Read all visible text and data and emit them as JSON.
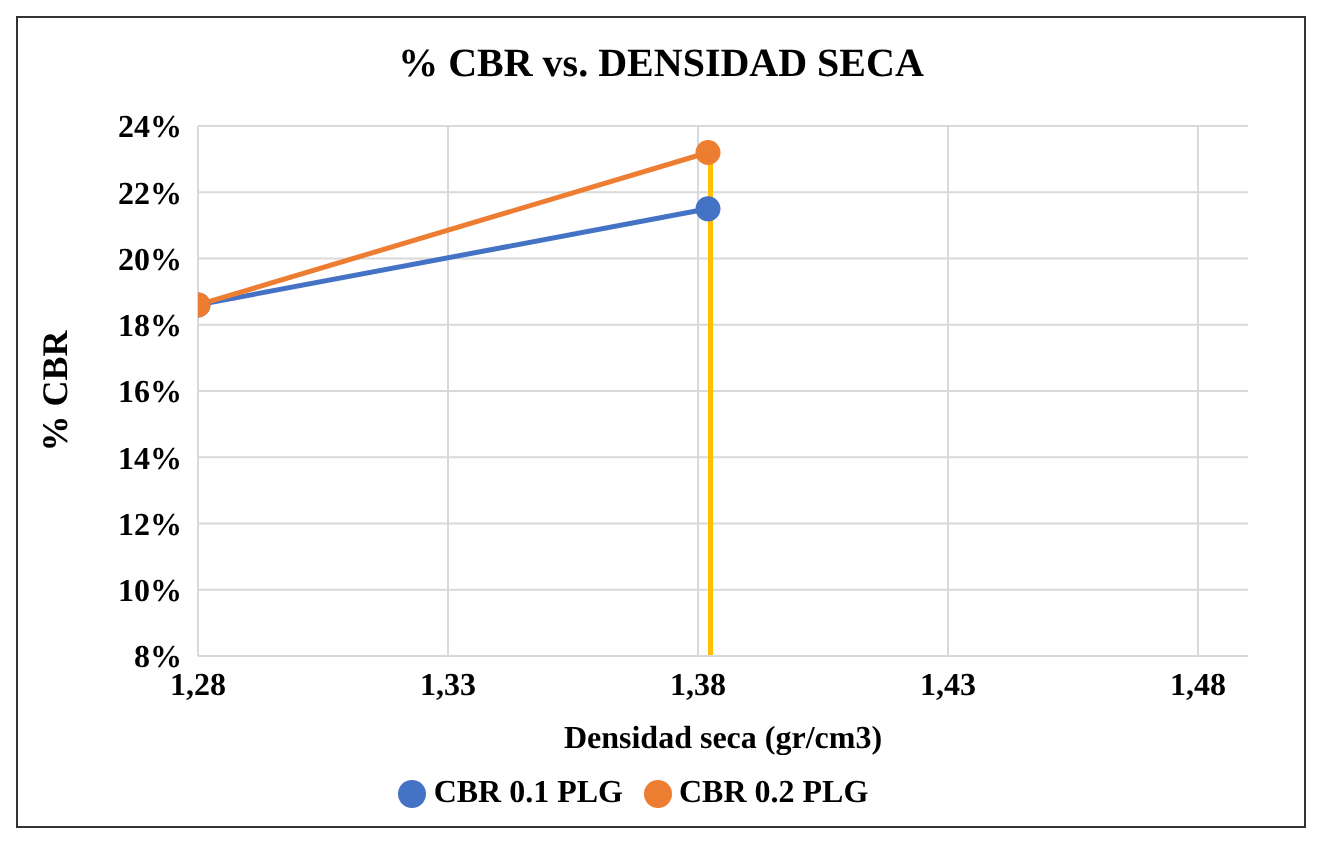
{
  "chart_data": {
    "type": "line",
    "title": "% CBR vs. DENSIDAD SECA",
    "xlabel": "Densidad seca (gr/cm3)",
    "ylabel": "% CBR",
    "x": [
      1.28,
      1.382
    ],
    "series": [
      {
        "name": "CBR 0.1 PLG",
        "color": "#4472c4",
        "values": [
          18.6,
          21.5
        ],
        "marker": "circle"
      },
      {
        "name": "CBR 0.2 PLG",
        "color": "#ed7d31",
        "values": [
          18.6,
          23.2
        ],
        "marker": "circle"
      },
      {
        "color": "#ffc000",
        "x": [
          1.3825,
          1.3825
        ],
        "values": [
          8,
          23.2
        ],
        "marker": "none"
      }
    ],
    "xlim": [
      1.28,
      1.49
    ],
    "xticks": [
      {
        "value": 1.28,
        "label": "1,28"
      },
      {
        "value": 1.33,
        "label": "1,33"
      },
      {
        "value": 1.38,
        "label": "1,38"
      },
      {
        "value": 1.43,
        "label": "1,43"
      },
      {
        "value": 1.48,
        "label": "1,48"
      }
    ],
    "ylim": [
      8,
      24
    ],
    "yticks": [
      {
        "value": 8,
        "label": "8%"
      },
      {
        "value": 10,
        "label": "10%"
      },
      {
        "value": 12,
        "label": "12%"
      },
      {
        "value": 14,
        "label": "14%"
      },
      {
        "value": 16,
        "label": "16%"
      },
      {
        "value": 18,
        "label": "18%"
      },
      {
        "value": 20,
        "label": "20%"
      },
      {
        "value": 22,
        "label": "22%"
      },
      {
        "value": 24,
        "label": "24%"
      }
    ],
    "grid": true,
    "legend": "bottom"
  }
}
